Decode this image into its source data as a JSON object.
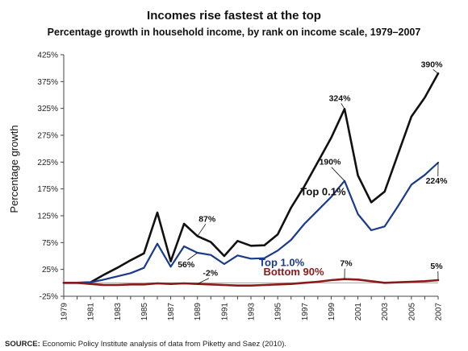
{
  "chart_data": {
    "type": "line",
    "title": "Incomes rise fastest at the top",
    "subtitle": "Percentage growth in household income, by rank on income scale, 1979–2007",
    "xlabel": "",
    "ylabel": "Percentage growth",
    "ylim": [
      -25,
      425
    ],
    "xlim": [
      1979,
      2007
    ],
    "yticks": [
      -25,
      25,
      75,
      125,
      175,
      225,
      275,
      325,
      375,
      425
    ],
    "ytick_labels": [
      "-25%",
      "25%",
      "75%",
      "125%",
      "175%",
      "225%",
      "275%",
      "325%",
      "375%",
      "425%"
    ],
    "xticks": [
      1979,
      1980,
      1981,
      1982,
      1983,
      1984,
      1985,
      1986,
      1987,
      1988,
      1989,
      1990,
      1991,
      1992,
      1993,
      1994,
      1995,
      1996,
      1997,
      1998,
      1999,
      2000,
      2001,
      2002,
      2003,
      2004,
      2005,
      2006,
      2007
    ],
    "xtick_labels": [
      "1979",
      "1981",
      "1983",
      "1985",
      "1987",
      "1989",
      "1991",
      "1993",
      "1995",
      "1997",
      "1999",
      "2001",
      "2003",
      "2005",
      "2007"
    ],
    "grid": false,
    "legend": "none",
    "x": [
      1979,
      1980,
      1981,
      1982,
      1983,
      1984,
      1985,
      1986,
      1987,
      1988,
      1989,
      1990,
      1991,
      1992,
      1993,
      1994,
      1995,
      1996,
      1997,
      1998,
      1999,
      2000,
      2001,
      2002,
      2003,
      2004,
      2005,
      2006,
      2007
    ],
    "series": [
      {
        "name": "Top 0.1%",
        "color": "#111111",
        "values": [
          0,
          0,
          1,
          15,
          28,
          42,
          55,
          131,
          40,
          110,
          87,
          76,
          50,
          78,
          69,
          70,
          90,
          140,
          180,
          225,
          270,
          324,
          200,
          150,
          170,
          240,
          310,
          345,
          390
        ]
      },
      {
        "name": "Top 1.0%",
        "color": "#1a3a8c",
        "values": [
          0,
          0,
          1,
          6,
          12,
          18,
          28,
          73,
          30,
          68,
          56,
          52,
          35,
          51,
          45,
          46,
          60,
          80,
          110,
          135,
          160,
          190,
          128,
          98,
          105,
          143,
          183,
          201,
          224
        ]
      },
      {
        "name": "Bottom 90%",
        "color": "#8b1a1a",
        "values": [
          0,
          0,
          -2,
          -4,
          -4,
          -3,
          -3,
          -1,
          -2,
          -1,
          -2,
          -3,
          -4,
          -5,
          -5,
          -4,
          -3,
          -2,
          0,
          2,
          5,
          7,
          6,
          3,
          0,
          1,
          2,
          3,
          5
        ]
      }
    ],
    "annotations": [
      {
        "text": "390%",
        "x": 2007,
        "y": 390
      },
      {
        "text": "324%",
        "x": 2000,
        "y": 324
      },
      {
        "text": "190%",
        "x": 2000,
        "y": 190
      },
      {
        "text": "224%",
        "x": 2007,
        "y": 224
      },
      {
        "text": "87%",
        "x": 1989,
        "y": 87
      },
      {
        "text": "56%",
        "x": 1989,
        "y": 56
      },
      {
        "text": "-2%",
        "x": 1989,
        "y": -2
      },
      {
        "text": "7%",
        "x": 2000,
        "y": 7
      },
      {
        "text": "5%",
        "x": 2007,
        "y": 5
      }
    ]
  },
  "source": {
    "label": "SOURCE:",
    "text": " Economic Policy Institute analysis of data from Piketty and Saez (2010)."
  }
}
